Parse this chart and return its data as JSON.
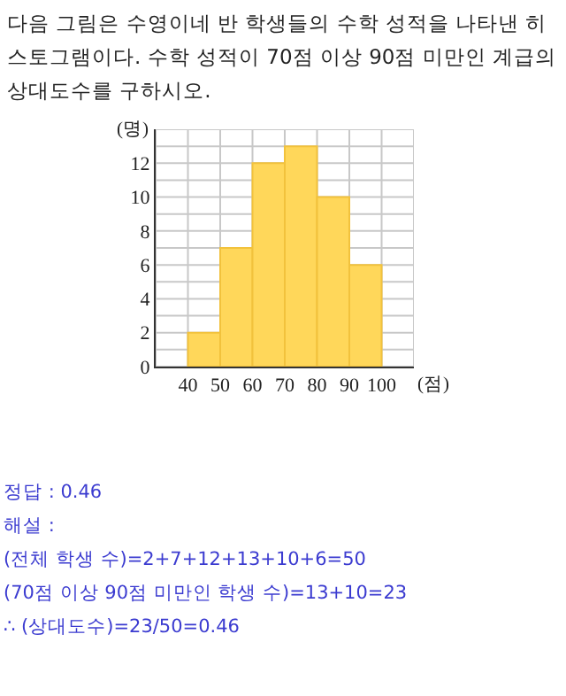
{
  "chart_data": {
    "type": "histogram",
    "title": "다음 그림은 수영이네 반 학생들의 수학 성적을 나타낸 히스토그램이다. 수학 성적이 70점 이상 90점 미만인 계급의 상대도수를 구하시오.",
    "xlabel": "(점)",
    "ylabel": "(명)",
    "bins": [
      40,
      50,
      60,
      70,
      80,
      90,
      100
    ],
    "values": [
      2,
      7,
      12,
      13,
      10,
      6
    ],
    "color": "#ffd75a",
    "xlim": [
      30,
      110
    ],
    "xticks": [
      {
        "value": 30,
        "label": null
      },
      40,
      50,
      60,
      70,
      80,
      90,
      100,
      {
        "value": 110,
        "label": null
      }
    ],
    "ylim": [
      0,
      14
    ],
    "yticks": [
      0,
      {
        "value": 1,
        "label": null
      },
      2,
      {
        "value": 3,
        "label": null
      },
      4,
      {
        "value": 5,
        "label": null
      },
      6,
      {
        "value": 7,
        "label": null
      },
      8,
      {
        "value": 9,
        "label": null
      },
      10,
      {
        "value": 11,
        "label": null
      },
      12,
      {
        "value": 13,
        "label": null
      },
      {
        "value": 14,
        "label": null
      }
    ],
    "grid": true,
    "annotations": [
      "정답 : 0.46",
      "해설 :",
      "(전체 학생 수)=2+7+12+13+10+6=50",
      "(70점 이상 90점 미만인 학생 수)=13+10=23",
      "∴ (상대도수)=23/50=0.46"
    ]
  }
}
